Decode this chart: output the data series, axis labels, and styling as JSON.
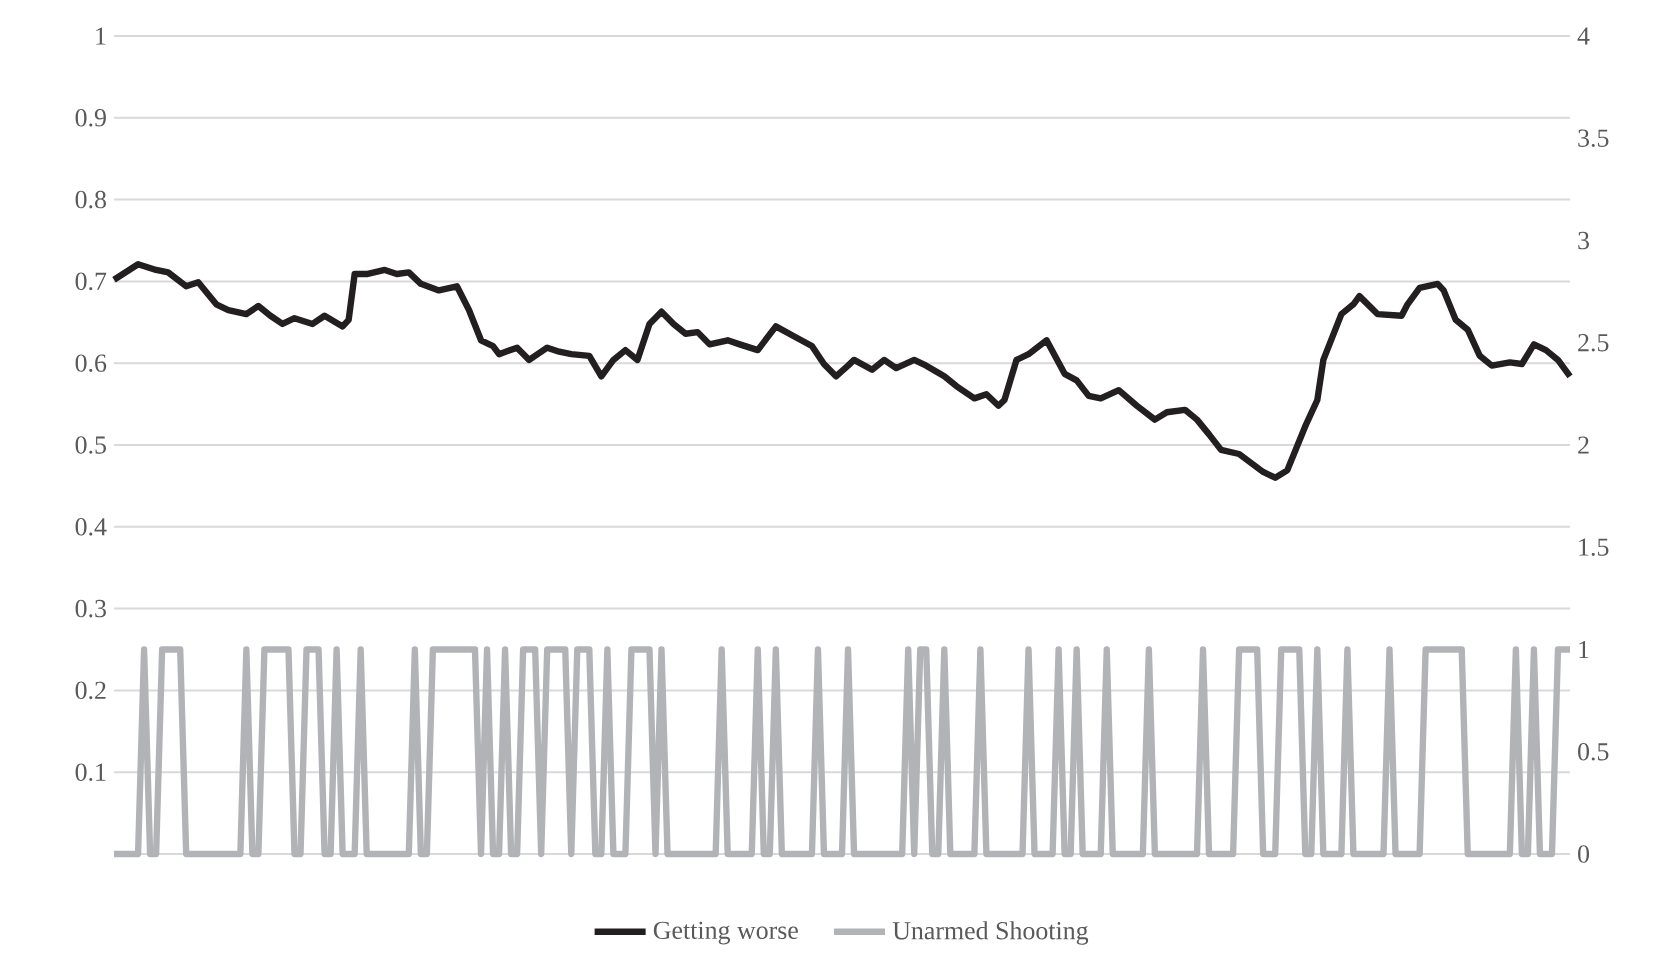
{
  "chart_data": {
    "type": "line",
    "categories": [
      null,
      null,
      null,
      null,
      null,
      null,
      null,
      null,
      null,
      null,
      null,
      null,
      null,
      null,
      null,
      null,
      null,
      null,
      null,
      null,
      null,
      null,
      null,
      null,
      null,
      null,
      null,
      null,
      null,
      null,
      null,
      null,
      null,
      null,
      null,
      null,
      null,
      null,
      null,
      null,
      null,
      null,
      null,
      null,
      null,
      null,
      null,
      null,
      null,
      null,
      null,
      null,
      null,
      null,
      null,
      null,
      null,
      null,
      null,
      null,
      null,
      null,
      null,
      null,
      null,
      null,
      null,
      null,
      null,
      null,
      null,
      null,
      null,
      null,
      null,
      null,
      null,
      null,
      null,
      null,
      null,
      null,
      null,
      null,
      null,
      null,
      null,
      null,
      null,
      null,
      null,
      null,
      null,
      null,
      null,
      null,
      null,
      null,
      null,
      null,
      null,
      null,
      null,
      null,
      null,
      null,
      null,
      null,
      null,
      null,
      null,
      null,
      null,
      null,
      null,
      null,
      null,
      null,
      null,
      null,
      null,
      null,
      null,
      null,
      null,
      null,
      null,
      null,
      null,
      null,
      null,
      null,
      null,
      null,
      null,
      null,
      null,
      null,
      null,
      null,
      null,
      null,
      null,
      null,
      null,
      null,
      null,
      null,
      null,
      null,
      null,
      null,
      null,
      null,
      null,
      null,
      null,
      null,
      null,
      null,
      null,
      null,
      null,
      null,
      null,
      null,
      null,
      null,
      null,
      null,
      null,
      null,
      null,
      null,
      null,
      null,
      null,
      null,
      null,
      null,
      null,
      null,
      null,
      null,
      null,
      null,
      null,
      null,
      null,
      null,
      null,
      null,
      null,
      null,
      null,
      null,
      null,
      null,
      null,
      null,
      null,
      null,
      null,
      null,
      null,
      null,
      null,
      null,
      null,
      null,
      null,
      null,
      null,
      null,
      null,
      null,
      null,
      null,
      null,
      null,
      null,
      null,
      null,
      null,
      null,
      null,
      null,
      null,
      null,
      null,
      null,
      null,
      null,
      null,
      null,
      null,
      null,
      null,
      null,
      null,
      null,
      null,
      null
    ],
    "series": [
      {
        "name": "Getting worse",
        "color": "#231f20",
        "values": [
          0.702,
          null,
          null,
          null,
          0.721,
          null,
          null,
          0.714,
          null,
          0.711,
          null,
          null,
          0.694,
          null,
          0.699,
          null,
          null,
          0.672,
          null,
          0.665,
          null,
          null,
          0.66,
          null,
          0.67,
          null,
          0.658,
          null,
          0.648,
          null,
          0.655,
          null,
          null,
          0.648,
          null,
          0.658,
          null,
          null,
          0.645,
          0.653,
          0.709,
          null,
          0.709,
          null,
          null,
          0.714,
          null,
          0.709,
          null,
          0.711,
          null,
          0.697,
          null,
          null,
          0.689,
          null,
          null,
          0.694,
          null,
          0.665,
          null,
          0.628,
          null,
          0.621,
          0.611,
          null,
          null,
          0.619,
          null,
          0.604,
          null,
          null,
          0.619,
          null,
          0.614,
          null,
          0.611,
          null,
          null,
          0.609,
          null,
          0.584,
          null,
          0.604,
          null,
          0.616,
          null,
          0.604,
          null,
          0.648,
          null,
          0.663,
          null,
          0.648,
          null,
          0.636,
          null,
          0.638,
          null,
          0.623,
          null,
          null,
          0.628,
          null,
          0.623,
          null,
          null,
          0.616,
          null,
          null,
          0.645,
          null,
          null,
          0.633,
          null,
          null,
          0.621,
          null,
          0.599,
          null,
          0.584,
          null,
          0.597,
          0.604,
          null,
          null,
          0.592,
          null,
          0.604,
          null,
          0.594,
          null,
          null,
          0.604,
          null,
          0.597,
          null,
          null,
          0.584,
          null,
          0.572,
          null,
          null,
          0.557,
          null,
          0.562,
          null,
          0.548,
          0.555,
          null,
          0.604,
          null,
          0.611,
          null,
          null,
          0.628,
          null,
          null,
          0.587,
          null,
          0.579,
          null,
          0.56,
          null,
          0.557,
          null,
          null,
          0.567,
          null,
          null,
          0.548,
          null,
          null,
          0.531,
          null,
          0.54,
          null,
          null,
          0.543,
          null,
          0.531,
          null,
          0.513,
          null,
          0.494,
          null,
          null,
          0.489,
          null,
          null,
          null,
          0.467,
          null,
          0.46,
          null,
          0.469,
          null,
          null,
          0.523,
          null,
          0.555,
          0.604,
          null,
          null,
          0.66,
          null,
          0.672,
          0.682,
          null,
          null,
          0.66,
          null,
          null,
          null,
          0.658,
          0.672,
          null,
          0.692,
          null,
          null,
          0.697,
          0.689,
          null,
          0.653,
          null,
          0.641,
          null,
          0.609,
          null,
          0.597,
          null,
          null,
          0.601,
          null,
          0.599,
          null,
          0.623,
          null,
          0.616,
          null,
          0.604,
          null,
          0.584
        ]
      },
      {
        "name": "Unarmed Shooting",
        "color": "#b1b3b6",
        "axis": "y2",
        "values": [
          0,
          0,
          0,
          0,
          0,
          1,
          0,
          0,
          1,
          1,
          1,
          1,
          0,
          0,
          0,
          0,
          0,
          0,
          0,
          0,
          0,
          0,
          1,
          0,
          0,
          1,
          1,
          1,
          1,
          1,
          0,
          0,
          1,
          1,
          1,
          0,
          0,
          1,
          0,
          0,
          0,
          1,
          0,
          0,
          0,
          0,
          0,
          0,
          0,
          0,
          1,
          0,
          0,
          1,
          1,
          1,
          1,
          1,
          1,
          1,
          1,
          0,
          1,
          0,
          0,
          1,
          0,
          0,
          1,
          1,
          1,
          0,
          1,
          1,
          1,
          1,
          0,
          1,
          1,
          1,
          0,
          0,
          1,
          0,
          0,
          0,
          1,
          1,
          1,
          1,
          0,
          1,
          0,
          0,
          0,
          0,
          0,
          0,
          0,
          0,
          0,
          1,
          0,
          0,
          0,
          0,
          0,
          1,
          0,
          0,
          1,
          0,
          0,
          0,
          0,
          0,
          0,
          1,
          0,
          0,
          0,
          0,
          1,
          0,
          0,
          0,
          0,
          0,
          0,
          0,
          0,
          0,
          1,
          0,
          1,
          1,
          0,
          0,
          1,
          0,
          0,
          0,
          0,
          0,
          1,
          0,
          0,
          0,
          0,
          0,
          0,
          0,
          1,
          0,
          0,
          0,
          0,
          1,
          0,
          0,
          1,
          0,
          0,
          0,
          0,
          1,
          0,
          0,
          0,
          0,
          0,
          0,
          1,
          0,
          0,
          0,
          0,
          0,
          0,
          0,
          0,
          1,
          0,
          0,
          0,
          0,
          0,
          1,
          1,
          1,
          1,
          0,
          0,
          0,
          1,
          1,
          1,
          1,
          0,
          0,
          1,
          0,
          0,
          0,
          0,
          1,
          0,
          0,
          0,
          0,
          0,
          0,
          1,
          0,
          0,
          0,
          0,
          0,
          1,
          1,
          1,
          1,
          1,
          1,
          1,
          0,
          0,
          0,
          0,
          0,
          0,
          0,
          0,
          1,
          0,
          0,
          1,
          0,
          0,
          0,
          1,
          1,
          1
        ]
      }
    ],
    "ylim": [
      0,
      1
    ],
    "yticks": [
      {
        "value": 0,
        "label": null
      },
      0.1,
      0.2,
      0.3,
      0.4,
      0.5,
      0.6,
      0.7,
      0.8,
      0.9,
      1
    ],
    "y2lim": [
      0,
      4
    ],
    "y2ticks": [
      0,
      0.5,
      1,
      1.5,
      2,
      2.5,
      3,
      3.5,
      4
    ],
    "grid": "y",
    "legend": "bottom"
  }
}
